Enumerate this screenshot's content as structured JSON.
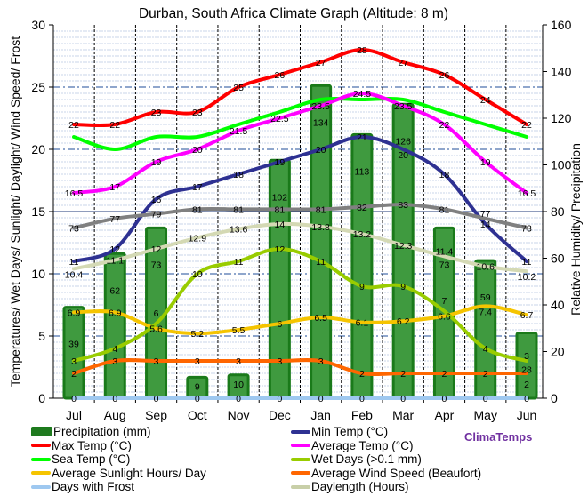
{
  "chart_data": {
    "type": "line",
    "title": "Durban, South Africa Climate Graph (Altitude: 8 m)",
    "ylabel": "Temperatures/ Wet Days/ Sunlight/ Daylight/ Wind Speed/ Frost",
    "y2label": "Relative Humidity/ Precipitation",
    "ylim": [
      0,
      30
    ],
    "y2lim": [
      0,
      160
    ],
    "yticks": [
      "0",
      "5",
      "10",
      "15",
      "20",
      "25",
      "30"
    ],
    "y2ticks": [
      "0",
      "20",
      "40",
      "60",
      "80",
      "100",
      "120",
      "140",
      "160"
    ],
    "categories": [
      "Jul",
      "Aug",
      "Sep",
      "Oct",
      "Nov",
      "Dec",
      "Jan",
      "Feb",
      "Mar",
      "Apr",
      "May",
      "Jun"
    ],
    "series": [
      {
        "name": "Precipitation (mm)",
        "kind": "bar",
        "axis": "right",
        "color": "#2e8b2e",
        "labels": true,
        "values": [
          39.0,
          62.0,
          73.0,
          9.0,
          10.0,
          102.0,
          134.0,
          113.0,
          126.0,
          73.0,
          59.0,
          28.0
        ]
      },
      {
        "name": "Max Temp (°C)",
        "kind": "line",
        "axis": "left",
        "color": "#ff0000",
        "labels": true,
        "values": [
          22,
          22,
          23,
          23,
          25,
          26,
          27,
          28,
          27,
          26,
          24,
          22
        ]
      },
      {
        "name": "Sea Temp (°C)",
        "kind": "line",
        "axis": "left",
        "color": "#00ff00",
        "labels": false,
        "values": [
          21,
          20,
          21,
          21,
          22,
          23,
          24,
          24,
          24,
          23,
          22,
          21
        ]
      },
      {
        "name": "Average Sunlight Hours/ Day",
        "kind": "line",
        "axis": "left",
        "color": "#f5c400",
        "labels": true,
        "values": [
          6.9,
          6.9,
          5.6,
          5.2,
          5.5,
          6.0,
          6.5,
          6.1,
          6.2,
          6.6,
          7.4,
          6.7
        ]
      },
      {
        "name": "Days with Frost",
        "kind": "line",
        "axis": "left",
        "color": "#9ec8f0",
        "labels": true,
        "values": [
          0,
          0,
          0,
          0,
          0,
          0,
          0,
          0,
          0,
          0,
          0,
          0
        ]
      },
      {
        "name": "Min Temp (°C)",
        "kind": "line",
        "axis": "left",
        "color": "#2e3192",
        "labels": true,
        "values": [
          11,
          12,
          16,
          17,
          18,
          19,
          20,
          21,
          20,
          18,
          14,
          11
        ]
      },
      {
        "name": "Average Temp (°C)",
        "kind": "line",
        "axis": "left",
        "color": "#ff00ff",
        "labels": true,
        "values": [
          16.5,
          17,
          19.0,
          20.0,
          21.5,
          22.5,
          23.5,
          24.5,
          23.5,
          22.0,
          19.0,
          16.5
        ]
      },
      {
        "name": "Wet Days (>0.1 mm)",
        "kind": "line",
        "axis": "left",
        "color": "#99cc00",
        "labels": true,
        "values": [
          3,
          4,
          6,
          10,
          11,
          12,
          11,
          9,
          9,
          7,
          4,
          3
        ]
      },
      {
        "name": "Average Wind Speed (Beaufort)",
        "kind": "line",
        "axis": "left",
        "color": "#ff6600",
        "labels": true,
        "values": [
          2,
          3,
          3,
          3,
          3,
          3,
          3,
          2,
          2,
          2,
          2,
          2
        ]
      },
      {
        "name": "Daylength (Hours)",
        "kind": "line",
        "axis": "left",
        "color": "#d4d9b4",
        "labels": true,
        "values": [
          10.4,
          11.1,
          12.0,
          12.9,
          13.6,
          14.0,
          13.8,
          13.2,
          12.3,
          11.4,
          10.6,
          10.2
        ]
      },
      {
        "name": "Relative Humidity (%)",
        "kind": "line",
        "axis": "right",
        "color": "#808080",
        "labels": true,
        "values": [
          73,
          77,
          79,
          81,
          81,
          81,
          81,
          82,
          83,
          81,
          77,
          73
        ]
      }
    ],
    "grid": true,
    "legend_position": "bottom"
  },
  "legend": [
    {
      "label": "Precipitation (mm)",
      "color": "#1f7a1f"
    },
    {
      "label": "Min Temp (°C)",
      "color": "#2e3192"
    },
    {
      "label": "Max Temp (°C)",
      "color": "#ff0000"
    },
    {
      "label": "Average Temp (°C)",
      "color": "#ff00ff"
    },
    {
      "label": "Sea Temp (°C)",
      "color": "#00ff00"
    },
    {
      "label": "Wet Days (>0.1 mm)",
      "color": "#99cc00"
    },
    {
      "label": "Average Sunlight Hours/ Day",
      "color": "#f5c400"
    },
    {
      "label": "Average Wind Speed (Beaufort)",
      "color": "#ff6600"
    },
    {
      "label": "Days with Frost",
      "color": "#9ec8f0"
    },
    {
      "label": "Daylength (Hours)",
      "color": "#c8cfa8"
    }
  ],
  "brand": "ClimaTemps"
}
